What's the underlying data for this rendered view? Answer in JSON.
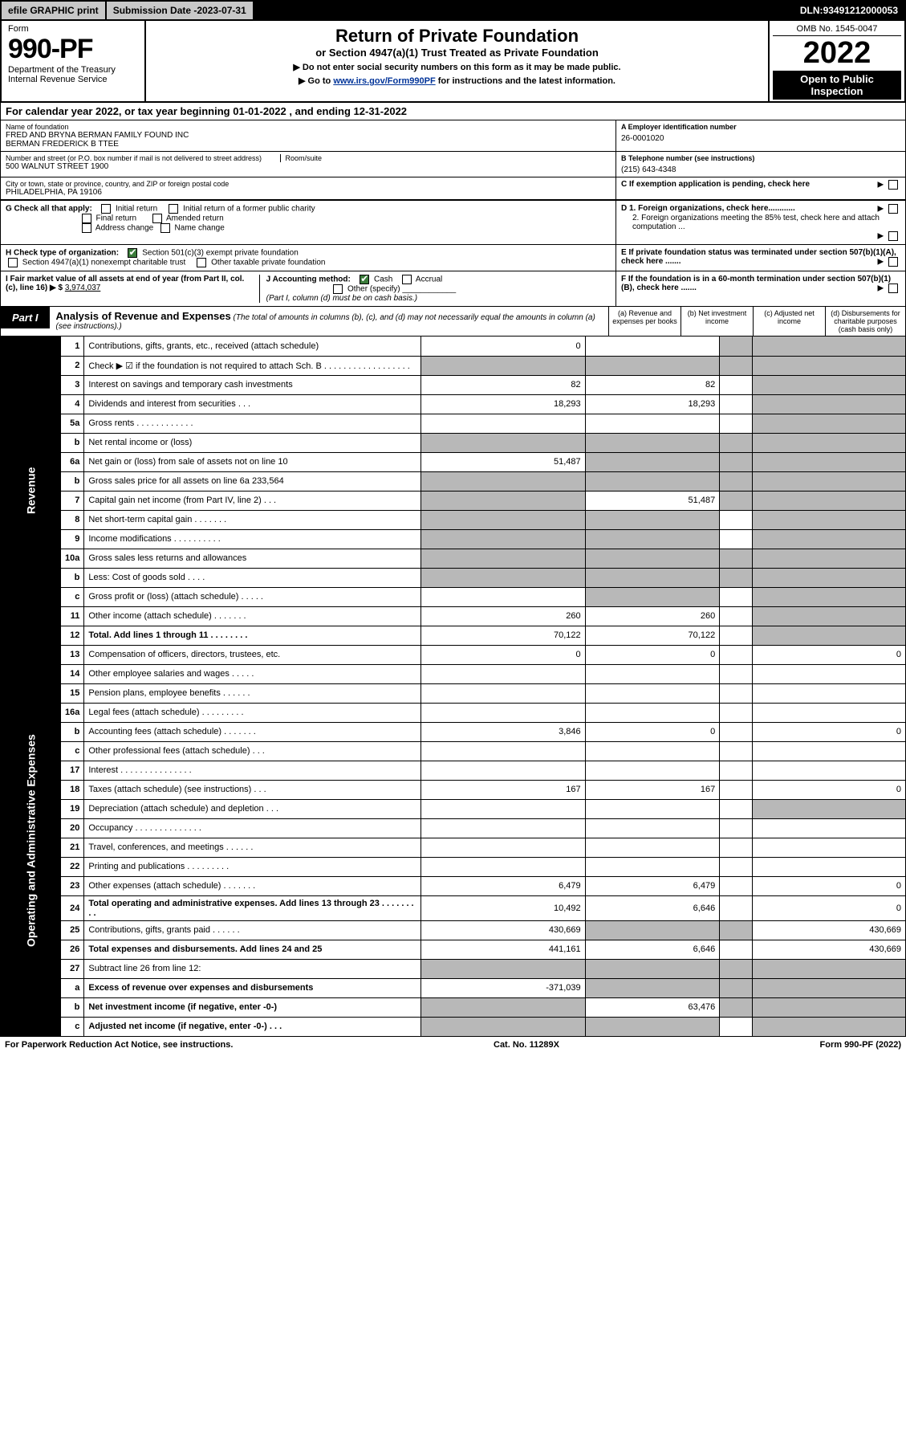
{
  "topbar": {
    "efile": "efile GRAPHIC print",
    "subdate_label": "Submission Date - ",
    "subdate": "2023-07-31",
    "dln_label": "DLN: ",
    "dln": "93491212000053"
  },
  "header": {
    "form_word": "Form",
    "form_num": "990-PF",
    "dept": "Department of the Treasury",
    "irs": "Internal Revenue Service",
    "title": "Return of Private Foundation",
    "sub": "or Section 4947(a)(1) Trust Treated as Private Foundation",
    "note1": "▶ Do not enter social security numbers on this form as it may be made public.",
    "note2_pre": "▶ Go to ",
    "note2_link": "www.irs.gov/Form990PF",
    "note2_post": " for instructions and the latest information.",
    "omb": "OMB No. 1545-0047",
    "year": "2022",
    "open": "Open to Public Inspection"
  },
  "calyear": {
    "pre": "For calendar year 2022, or tax year beginning ",
    "begin": "01-01-2022",
    "mid": " , and ending ",
    "end": "12-31-2022"
  },
  "info": {
    "name_lbl": "Name of foundation",
    "name1": "FRED AND BRYNA BERMAN FAMILY FOUND INC",
    "name2": "BERMAN FREDERICK B TTEE",
    "ein_lbl": "A Employer identification number",
    "ein": "26-0001020",
    "addr_lbl": "Number and street (or P.O. box number if mail is not delivered to street address)",
    "addr": "500 WALNUT STREET 1900",
    "room_lbl": "Room/suite",
    "tel_lbl": "B Telephone number (see instructions)",
    "tel": "(215) 643-4348",
    "city_lbl": "City or town, state or province, country, and ZIP or foreign postal code",
    "city": "PHILADELPHIA, PA  19106",
    "c_lbl": "C If exemption application is pending, check here"
  },
  "boxG": {
    "label": "G Check all that apply:",
    "opts": [
      "Initial return",
      "Initial return of a former public charity",
      "Final return",
      "Amended return",
      "Address change",
      "Name change"
    ]
  },
  "boxD": {
    "d1": "D 1. Foreign organizations, check here............",
    "d2": "2. Foreign organizations meeting the 85% test, check here and attach computation ..."
  },
  "boxH": {
    "label": "H Check type of organization:",
    "o1": "Section 501(c)(3) exempt private foundation",
    "o2": "Section 4947(a)(1) nonexempt charitable trust",
    "o3": "Other taxable private foundation"
  },
  "boxE": "E  If private foundation status was terminated under section 507(b)(1)(A), check here .......",
  "boxI": {
    "label": "I Fair market value of all assets at end of year (from Part II, col. (c), line 16) ▶ $ ",
    "val": "3,974,037"
  },
  "boxJ": {
    "label": "J Accounting method:",
    "cash": "Cash",
    "accrual": "Accrual",
    "other": "Other (specify)",
    "note": "(Part I, column (d) must be on cash basis.)"
  },
  "boxF": "F  If the foundation is in a 60-month termination under section 507(b)(1)(B), check here .......",
  "part1": {
    "label": "Part I",
    "title": "Analysis of Revenue and Expenses",
    "note": " (The total of amounts in columns (b), (c), and (d) may not necessarily equal the amounts in column (a) (see instructions).)",
    "cols": [
      "(a)  Revenue and expenses per books",
      "(b)  Net investment income",
      "(c)  Adjusted net income",
      "(d)  Disbursements for charitable purposes (cash basis only)"
    ]
  },
  "sidetabs": {
    "rev": "Revenue",
    "exp": "Operating and Administrative Expenses"
  },
  "rows": [
    {
      "n": "1",
      "d": "Contributions, gifts, grants, etc., received (attach schedule)",
      "a": "0",
      "b": "",
      "c": "shade",
      "dd": "shade"
    },
    {
      "n": "2",
      "d": "Check ▶ ☑ if the foundation is not required to attach Sch. B  . . . . . . . . . . . . . . . . . .",
      "a": "shade",
      "b": "shade",
      "c": "shade",
      "dd": "shade",
      "bold_not": true
    },
    {
      "n": "3",
      "d": "Interest on savings and temporary cash investments",
      "a": "82",
      "b": "82",
      "c": "",
      "dd": "shade"
    },
    {
      "n": "4",
      "d": "Dividends and interest from securities   .  .  .",
      "a": "18,293",
      "b": "18,293",
      "c": "",
      "dd": "shade"
    },
    {
      "n": "5a",
      "d": "Gross rents   .  .  .  .  .  .  .  .  .  .  .  .",
      "a": "",
      "b": "",
      "c": "",
      "dd": "shade"
    },
    {
      "n": "b",
      "d": "Net rental income or (loss) ",
      "a": "shade",
      "b": "shade",
      "c": "shade",
      "dd": "shade",
      "inset": true
    },
    {
      "n": "6a",
      "d": "Net gain or (loss) from sale of assets not on line 10",
      "a": "51,487",
      "b": "shade",
      "c": "shade",
      "dd": "shade"
    },
    {
      "n": "b",
      "d": "Gross sales price for all assets on line 6a             233,564",
      "a": "shade",
      "b": "shade",
      "c": "shade",
      "dd": "shade",
      "inset": true
    },
    {
      "n": "7",
      "d": "Capital gain net income (from Part IV, line 2)  .  .  .",
      "a": "shade",
      "b": "51,487",
      "c": "shade",
      "dd": "shade"
    },
    {
      "n": "8",
      "d": "Net short-term capital gain  .  .  .  .  .  .  .",
      "a": "shade",
      "b": "shade",
      "c": "",
      "dd": "shade"
    },
    {
      "n": "9",
      "d": "Income modifications .  .  .  .  .  .  .  .  .  .",
      "a": "shade",
      "b": "shade",
      "c": "",
      "dd": "shade"
    },
    {
      "n": "10a",
      "d": "Gross sales less returns and allowances",
      "a": "shade",
      "b": "shade",
      "c": "shade",
      "dd": "shade",
      "inset": true
    },
    {
      "n": "b",
      "d": "Less: Cost of goods sold  .  .  .  .",
      "a": "shade",
      "b": "shade",
      "c": "shade",
      "dd": "shade",
      "inset": true
    },
    {
      "n": "c",
      "d": "Gross profit or (loss) (attach schedule)  .  .  .  .  .",
      "a": "",
      "b": "shade",
      "c": "",
      "dd": "shade"
    },
    {
      "n": "11",
      "d": "Other income (attach schedule)  .  .  .  .  .  .  .",
      "a": "260",
      "b": "260",
      "c": "",
      "dd": "shade"
    },
    {
      "n": "12",
      "d": "Total. Add lines 1 through 11  .  .  .  .  .  .  .  .",
      "a": "70,122",
      "b": "70,122",
      "c": "",
      "dd": "shade",
      "bold": true
    }
  ],
  "rows2": [
    {
      "n": "13",
      "d": "Compensation of officers, directors, trustees, etc.",
      "a": "0",
      "b": "0",
      "c": "",
      "dd": "0"
    },
    {
      "n": "14",
      "d": "Other employee salaries and wages  .  .  .  .  .",
      "a": "",
      "b": "",
      "c": "",
      "dd": ""
    },
    {
      "n": "15",
      "d": "Pension plans, employee benefits  .  .  .  .  .  .",
      "a": "",
      "b": "",
      "c": "",
      "dd": ""
    },
    {
      "n": "16a",
      "d": "Legal fees (attach schedule) .  .  .  .  .  .  .  .  .",
      "a": "",
      "b": "",
      "c": "",
      "dd": ""
    },
    {
      "n": "b",
      "d": "Accounting fees (attach schedule) .  .  .  .  .  .  .",
      "a": "3,846",
      "b": "0",
      "c": "",
      "dd": "0"
    },
    {
      "n": "c",
      "d": "Other professional fees (attach schedule)  .  .  .",
      "a": "",
      "b": "",
      "c": "",
      "dd": ""
    },
    {
      "n": "17",
      "d": "Interest .  .  .  .  .  .  .  .  .  .  .  .  .  .  .",
      "a": "",
      "b": "",
      "c": "",
      "dd": ""
    },
    {
      "n": "18",
      "d": "Taxes (attach schedule) (see instructions)  .  .  .",
      "a": "167",
      "b": "167",
      "c": "",
      "dd": "0"
    },
    {
      "n": "19",
      "d": "Depreciation (attach schedule) and depletion  .  .  .",
      "a": "",
      "b": "",
      "c": "",
      "dd": "shade"
    },
    {
      "n": "20",
      "d": "Occupancy .  .  .  .  .  .  .  .  .  .  .  .  .  .",
      "a": "",
      "b": "",
      "c": "",
      "dd": ""
    },
    {
      "n": "21",
      "d": "Travel, conferences, and meetings .  .  .  .  .  .",
      "a": "",
      "b": "",
      "c": "",
      "dd": ""
    },
    {
      "n": "22",
      "d": "Printing and publications .  .  .  .  .  .  .  .  .",
      "a": "",
      "b": "",
      "c": "",
      "dd": ""
    },
    {
      "n": "23",
      "d": "Other expenses (attach schedule) .  .  .  .  .  .  .",
      "a": "6,479",
      "b": "6,479",
      "c": "",
      "dd": "0"
    },
    {
      "n": "24",
      "d": "Total operating and administrative expenses. Add lines 13 through 23  .  .  .  .  .  .  .  .  .",
      "a": "10,492",
      "b": "6,646",
      "c": "",
      "dd": "0",
      "bold": true
    },
    {
      "n": "25",
      "d": "Contributions, gifts, grants paid  .  .  .  .  .  .",
      "a": "430,669",
      "b": "shade",
      "c": "shade",
      "dd": "430,669"
    },
    {
      "n": "26",
      "d": "Total expenses and disbursements. Add lines 24 and 25",
      "a": "441,161",
      "b": "6,646",
      "c": "",
      "dd": "430,669",
      "bold": true
    },
    {
      "n": "27",
      "d": "Subtract line 26 from line 12:",
      "a": "shade",
      "b": "shade",
      "c": "shade",
      "dd": "shade"
    },
    {
      "n": "a",
      "d": "Excess of revenue over expenses and disbursements",
      "a": "-371,039",
      "b": "shade",
      "c": "shade",
      "dd": "shade",
      "bold": true
    },
    {
      "n": "b",
      "d": "Net investment income (if negative, enter -0-)",
      "a": "shade",
      "b": "63,476",
      "c": "shade",
      "dd": "shade",
      "bold": true
    },
    {
      "n": "c",
      "d": "Adjusted net income (if negative, enter -0-)  .  .  .",
      "a": "shade",
      "b": "shade",
      "c": "",
      "dd": "shade",
      "bold": true
    }
  ],
  "footer": {
    "left": "For Paperwork Reduction Act Notice, see instructions.",
    "mid": "Cat. No. 11289X",
    "right": "Form 990-PF (2022)"
  }
}
